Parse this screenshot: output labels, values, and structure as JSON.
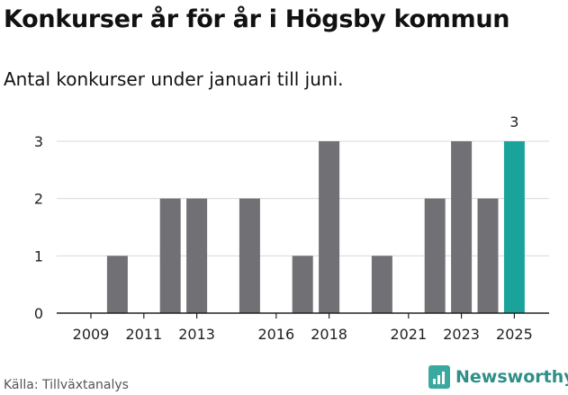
{
  "title": "Konkurser år för år i Högsby kommun",
  "subtitle": "Antal konkurser under januari till juni.",
  "source": "Källa: Tillväxtanalys",
  "brand": "Newsworthy",
  "colors": {
    "bar": "#717074",
    "highlight": "#1aa39a",
    "grid": "#d9d9d9",
    "brand": "#3aa99f"
  },
  "chart_data": {
    "type": "bar",
    "x": [
      2009,
      2010,
      2011,
      2012,
      2013,
      2014,
      2015,
      2016,
      2017,
      2018,
      2019,
      2020,
      2021,
      2022,
      2023,
      2024,
      2025
    ],
    "values": [
      0,
      1,
      0,
      2,
      2,
      0,
      2,
      0,
      1,
      3,
      0,
      1,
      0,
      2,
      3,
      2,
      3
    ],
    "x_tick_labels": [
      2009,
      2011,
      2013,
      2016,
      2018,
      2021,
      2023,
      2025
    ],
    "y_ticks": [
      0,
      1,
      2,
      3
    ],
    "ylim": [
      0,
      3
    ],
    "highlight_x": 2025,
    "highlight_label": "3",
    "grid": true
  }
}
